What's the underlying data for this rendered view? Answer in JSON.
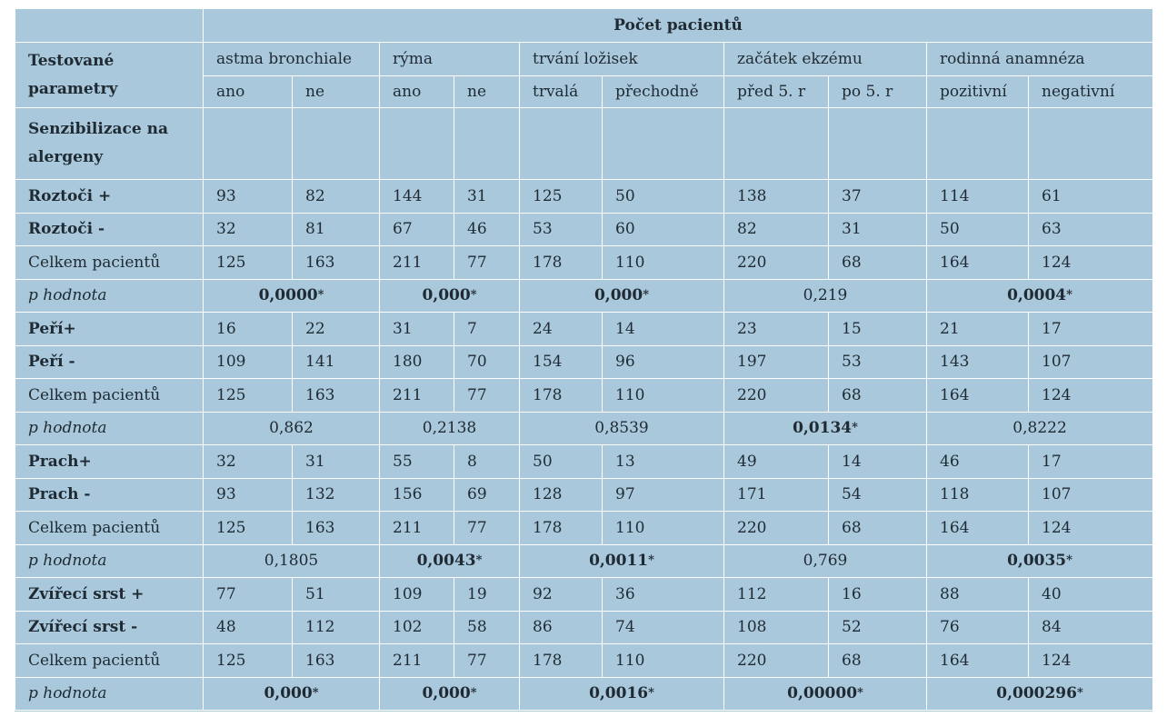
{
  "header": {
    "title": "Počet pacientů",
    "param_label": "Testované parametry",
    "groups": [
      "astma bronchiale",
      "rýma",
      "trvání ložisek",
      "začátek ekzému",
      "rodinná anamnéza"
    ],
    "subheaders": [
      "ano",
      "ne",
      "ano",
      "ne",
      "trvalá",
      "přechodně",
      "před 5. r",
      "po 5. r",
      "pozitivní",
      "negativní"
    ]
  },
  "section_label": "Senzibilizace na alergeny",
  "blocks": [
    {
      "rows": [
        {
          "label": "Roztoči +",
          "bold": true,
          "values": [
            "93",
            "82",
            "144",
            "31",
            "125",
            "50",
            "138",
            "37",
            "114",
            "61"
          ]
        },
        {
          "label": "Roztoči -",
          "bold": true,
          "values": [
            "32",
            "81",
            "67",
            "46",
            "53",
            "60",
            "82",
            "31",
            "50",
            "63"
          ]
        },
        {
          "label": "Celkem pacientů",
          "bold": false,
          "values": [
            "125",
            "163",
            "211",
            "77",
            "178",
            "110",
            "220",
            "68",
            "164",
            "124"
          ]
        }
      ],
      "p_label": "p hodnota",
      "p": [
        {
          "v": "0,0000",
          "sig": true
        },
        {
          "v": "0,000",
          "sig": true
        },
        {
          "v": "0,000",
          "sig": true
        },
        {
          "v": "0,219",
          "sig": false
        },
        {
          "v": "0,0004",
          "sig": true
        }
      ]
    },
    {
      "rows": [
        {
          "label": "Peří+",
          "bold": true,
          "values": [
            "16",
            "22",
            "31",
            "7",
            "24",
            "14",
            "23",
            "15",
            "21",
            "17"
          ]
        },
        {
          "label": "Peří -",
          "bold": true,
          "values": [
            "109",
            "141",
            "180",
            "70",
            "154",
            "96",
            "197",
            "53",
            "143",
            "107"
          ]
        },
        {
          "label": "Celkem pacientů",
          "bold": false,
          "values": [
            "125",
            "163",
            "211",
            "77",
            "178",
            "110",
            "220",
            "68",
            "164",
            "124"
          ]
        }
      ],
      "p_label": "p hodnota",
      "p": [
        {
          "v": "0,862",
          "sig": false
        },
        {
          "v": "0,2138",
          "sig": false
        },
        {
          "v": "0,8539",
          "sig": false
        },
        {
          "v": "0,0134",
          "sig": true
        },
        {
          "v": "0,8222",
          "sig": false
        }
      ]
    },
    {
      "rows": [
        {
          "label": "Prach+",
          "bold": true,
          "values": [
            "32",
            "31",
            "55",
            "8",
            "50",
            "13",
            "49",
            "14",
            "46",
            "17"
          ]
        },
        {
          "label": "Prach -",
          "bold": true,
          "values": [
            "93",
            "132",
            "156",
            "69",
            "128",
            "97",
            "171",
            "54",
            "118",
            "107"
          ]
        },
        {
          "label": "Celkem pacientů",
          "bold": false,
          "values": [
            "125",
            "163",
            "211",
            "77",
            "178",
            "110",
            "220",
            "68",
            "164",
            "124"
          ]
        }
      ],
      "p_label": "p hodnota",
      "p": [
        {
          "v": "0,1805",
          "sig": false
        },
        {
          "v": "0,0043",
          "sig": true
        },
        {
          "v": "0,0011",
          "sig": true
        },
        {
          "v": "0,769",
          "sig": false
        },
        {
          "v": "0,0035",
          "sig": true
        }
      ]
    },
    {
      "rows": [
        {
          "label": "Zvířecí srst +",
          "bold": true,
          "values": [
            "77",
            "51",
            "109",
            "19",
            "92",
            "36",
            "112",
            "16",
            "88",
            "40"
          ]
        },
        {
          "label": "Zvířecí srst -",
          "bold": true,
          "values": [
            "48",
            "112",
            "102",
            "58",
            "86",
            "74",
            "108",
            "52",
            "76",
            "84"
          ]
        },
        {
          "label": "Celkem pacientů",
          "bold": false,
          "values": [
            "125",
            "163",
            "211",
            "77",
            "178",
            "110",
            "220",
            "68",
            "164",
            "124"
          ]
        }
      ],
      "p_label": "p hodnota",
      "p": [
        {
          "v": "0,000",
          "sig": true
        },
        {
          "v": "0,000",
          "sig": true
        },
        {
          "v": "0,0016",
          "sig": true
        },
        {
          "v": "0,00000",
          "sig": true
        },
        {
          "v": "0,000296",
          "sig": true
        }
      ]
    }
  ],
  "sig_marker": "*",
  "colors": {
    "cell_bg": "#a9c8db",
    "grid": "#ffffff",
    "text": "#1f2a33"
  }
}
